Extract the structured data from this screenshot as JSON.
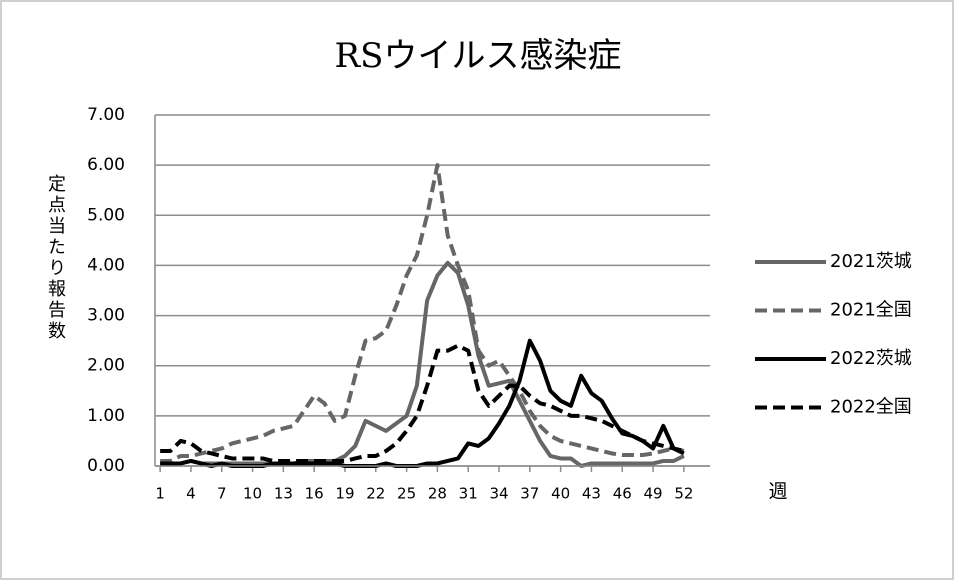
{
  "chart_data": {
    "type": "line",
    "title": "RSウイルス感染症",
    "ylabel": "定点当たり報告数",
    "xlabel": "週",
    "x": [
      1,
      2,
      3,
      4,
      5,
      6,
      7,
      8,
      9,
      10,
      11,
      12,
      13,
      14,
      15,
      16,
      17,
      18,
      19,
      20,
      21,
      22,
      23,
      24,
      25,
      26,
      27,
      28,
      29,
      30,
      31,
      32,
      33,
      34,
      35,
      36,
      37,
      38,
      39,
      40,
      41,
      42,
      43,
      44,
      45,
      46,
      47,
      48,
      49,
      50,
      51,
      52
    ],
    "xlim": [
      0.5,
      52.5
    ],
    "xticks": [
      1,
      4,
      7,
      10,
      13,
      16,
      19,
      22,
      25,
      28,
      31,
      34,
      37,
      40,
      43,
      46,
      49,
      52
    ],
    "ylim": [
      0,
      7
    ],
    "yticks": [
      {
        "value": 0,
        "label": "0.00"
      },
      {
        "value": 1,
        "label": "1.00"
      },
      {
        "value": 2,
        "label": "2.00"
      },
      {
        "value": 3,
        "label": "3.00"
      },
      {
        "value": 4,
        "label": "4.00"
      },
      {
        "value": 5,
        "label": "5.00"
      },
      {
        "value": 6,
        "label": "6.00"
      },
      {
        "value": 7,
        "label": "7.00"
      }
    ],
    "grid": true,
    "legend": "right",
    "series": [
      {
        "name": "2021茨城",
        "color": "#666666",
        "style": "solid",
        "values": [
          0.05,
          0.05,
          0.05,
          0.1,
          0.05,
          0.05,
          0.05,
          0.05,
          0.05,
          0.05,
          0.05,
          0.05,
          0.05,
          0.05,
          0.1,
          0.1,
          0.1,
          0.1,
          0.2,
          0.4,
          0.9,
          0.8,
          0.7,
          0.85,
          1.0,
          1.6,
          3.3,
          3.8,
          4.05,
          3.85,
          3.2,
          2.2,
          1.6,
          1.65,
          1.7,
          1.3,
          0.9,
          0.5,
          0.2,
          0.15,
          0.15,
          0.0,
          0.05,
          0.05,
          0.05,
          0.05,
          0.05,
          0.05,
          0.05,
          0.1,
          0.1,
          0.2
        ]
      },
      {
        "name": "2021全国",
        "color": "#666666",
        "style": "dashed",
        "values": [
          0.1,
          0.1,
          0.2,
          0.2,
          0.25,
          0.3,
          0.35,
          0.45,
          0.5,
          0.55,
          0.6,
          0.7,
          0.75,
          0.8,
          1.1,
          1.4,
          1.25,
          0.9,
          1.0,
          1.8,
          2.5,
          2.55,
          2.7,
          3.2,
          3.8,
          4.2,
          5.0,
          6.0,
          4.6,
          4.0,
          3.5,
          2.3,
          2.0,
          2.1,
          1.8,
          1.5,
          1.1,
          0.8,
          0.6,
          0.5,
          0.45,
          0.4,
          0.35,
          0.3,
          0.25,
          0.22,
          0.22,
          0.22,
          0.25,
          0.3,
          0.35,
          0.3
        ]
      },
      {
        "name": "2022茨城",
        "color": "#000000",
        "style": "solid",
        "values": [
          0.05,
          0.05,
          0.05,
          0.1,
          0.05,
          0.0,
          0.05,
          0.0,
          0.0,
          0.0,
          0.0,
          0.05,
          0.05,
          0.05,
          0.05,
          0.05,
          0.05,
          0.05,
          0.0,
          0.0,
          0.0,
          0.0,
          0.05,
          0.0,
          0.0,
          0.0,
          0.05,
          0.05,
          0.1,
          0.15,
          0.45,
          0.4,
          0.55,
          0.85,
          1.2,
          1.7,
          2.5,
          2.1,
          1.5,
          1.3,
          1.2,
          1.8,
          1.45,
          1.3,
          0.95,
          0.65,
          0.6,
          0.5,
          0.35,
          0.8,
          0.35,
          0.25
        ]
      },
      {
        "name": "2022全国",
        "color": "#000000",
        "style": "dashed",
        "values": [
          0.3,
          0.3,
          0.5,
          0.45,
          0.3,
          0.25,
          0.2,
          0.15,
          0.15,
          0.15,
          0.15,
          0.1,
          0.1,
          0.1,
          0.1,
          0.1,
          0.1,
          0.1,
          0.1,
          0.15,
          0.2,
          0.2,
          0.3,
          0.45,
          0.7,
          1.0,
          1.6,
          2.3,
          2.3,
          2.4,
          2.3,
          1.5,
          1.2,
          1.4,
          1.6,
          1.6,
          1.4,
          1.25,
          1.2,
          1.1,
          1.0,
          1.0,
          0.95,
          0.9,
          0.8,
          0.7,
          0.6,
          0.5,
          0.45,
          0.4,
          0.35,
          0.3
        ]
      }
    ]
  }
}
